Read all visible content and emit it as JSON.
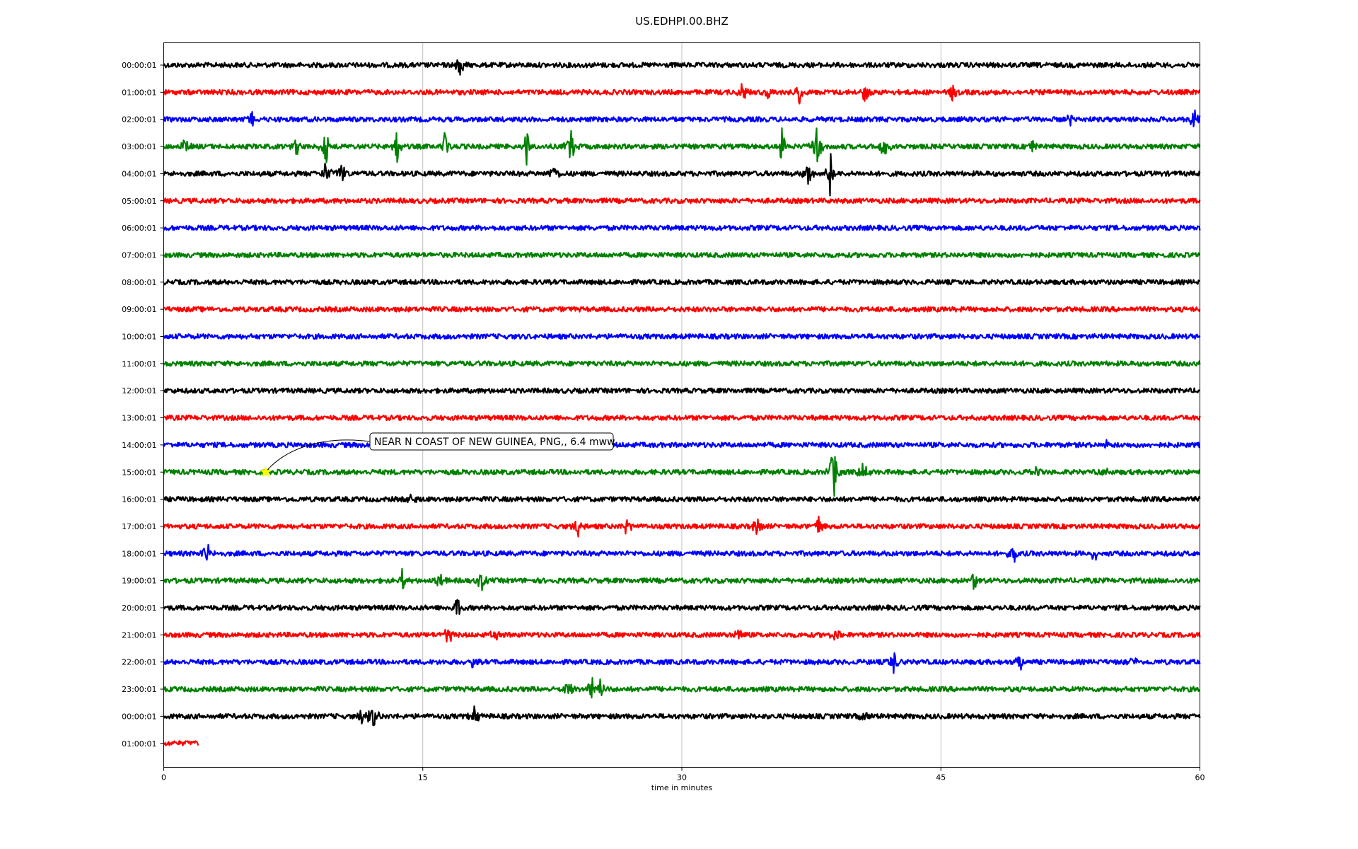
{
  "chart_data": {
    "type": "line",
    "title": "US.EDHPI.00.BHZ",
    "xlabel": "time in minutes",
    "ylabel": "",
    "xlim": [
      0,
      60
    ],
    "x_ticks": [
      0,
      15,
      30,
      45,
      60
    ],
    "x_tick_labels": [
      "0",
      "15",
      "30",
      "45",
      "60"
    ],
    "grid": "vertical",
    "colors": [
      "#000000",
      "#ff0000",
      "#0000ff",
      "#008000"
    ],
    "rows": [
      {
        "label": "00:00:01",
        "color": "#000000",
        "end_minute": 60,
        "events": [
          {
            "t": 17.1,
            "amp": 0.6
          }
        ]
      },
      {
        "label": "01:00:01",
        "color": "#ff0000",
        "end_minute": 60,
        "events": [
          {
            "t": 33.5,
            "amp": 0.6
          },
          {
            "t": 35.0,
            "amp": 0.4
          },
          {
            "t": 36.8,
            "amp": 0.7
          },
          {
            "t": 40.6,
            "amp": 0.5
          },
          {
            "t": 45.7,
            "amp": 0.4
          }
        ]
      },
      {
        "label": "02:00:01",
        "color": "#0000ff",
        "end_minute": 60,
        "events": [
          {
            "t": 5.1,
            "amp": 0.4
          },
          {
            "t": 52.5,
            "amp": 0.3
          },
          {
            "t": 59.7,
            "amp": 0.6
          }
        ]
      },
      {
        "label": "03:00:01",
        "color": "#008000",
        "end_minute": 60,
        "events": [
          {
            "t": 1.2,
            "amp": 0.4
          },
          {
            "t": 7.7,
            "amp": 0.6
          },
          {
            "t": 9.4,
            "amp": 0.9
          },
          {
            "t": 13.5,
            "amp": 0.9
          },
          {
            "t": 16.3,
            "amp": 0.9
          },
          {
            "t": 21.0,
            "amp": 0.9
          },
          {
            "t": 23.6,
            "amp": 1.0
          },
          {
            "t": 35.8,
            "amp": 0.9
          },
          {
            "t": 37.8,
            "amp": 1.2
          },
          {
            "t": 41.7,
            "amp": 0.7
          },
          {
            "t": 50.3,
            "amp": 0.4
          }
        ]
      },
      {
        "label": "04:00:01",
        "color": "#000000",
        "end_minute": 60,
        "events": [
          {
            "t": 9.4,
            "amp": 0.7
          },
          {
            "t": 10.3,
            "amp": 0.6
          },
          {
            "t": 22.6,
            "amp": 0.5
          },
          {
            "t": 37.3,
            "amp": 0.6
          },
          {
            "t": 38.6,
            "amp": 1.3
          }
        ]
      },
      {
        "label": "05:00:01",
        "color": "#ff0000",
        "end_minute": 60,
        "events": []
      },
      {
        "label": "06:00:01",
        "color": "#0000ff",
        "end_minute": 60,
        "events": []
      },
      {
        "label": "07:00:01",
        "color": "#008000",
        "end_minute": 60,
        "events": []
      },
      {
        "label": "08:00:01",
        "color": "#000000",
        "end_minute": 60,
        "events": []
      },
      {
        "label": "09:00:01",
        "color": "#ff0000",
        "end_minute": 60,
        "events": []
      },
      {
        "label": "10:00:01",
        "color": "#0000ff",
        "end_minute": 60,
        "events": []
      },
      {
        "label": "11:00:01",
        "color": "#008000",
        "end_minute": 60,
        "events": []
      },
      {
        "label": "12:00:01",
        "color": "#000000",
        "end_minute": 60,
        "events": []
      },
      {
        "label": "13:00:01",
        "color": "#ff0000",
        "end_minute": 60,
        "events": []
      },
      {
        "label": "14:00:01",
        "color": "#0000ff",
        "end_minute": 60,
        "events": [
          {
            "t": 54.6,
            "amp": 0.3
          }
        ]
      },
      {
        "label": "15:00:01",
        "color": "#008000",
        "end_minute": 60,
        "events": [
          {
            "t": 38.8,
            "amp": 1.4
          },
          {
            "t": 40.5,
            "amp": 0.6
          },
          {
            "t": 50.5,
            "amp": 0.3
          },
          {
            "t": 54.5,
            "amp": 0.4
          }
        ]
      },
      {
        "label": "16:00:01",
        "color": "#000000",
        "end_minute": 60,
        "events": [
          {
            "t": 14.3,
            "amp": 0.4
          }
        ]
      },
      {
        "label": "17:00:01",
        "color": "#ff0000",
        "end_minute": 60,
        "events": [
          {
            "t": 24.0,
            "amp": 0.5
          },
          {
            "t": 26.8,
            "amp": 0.5
          },
          {
            "t": 34.4,
            "amp": 0.6
          },
          {
            "t": 37.9,
            "amp": 0.6
          }
        ]
      },
      {
        "label": "18:00:01",
        "color": "#0000ff",
        "end_minute": 60,
        "events": [
          {
            "t": 2.5,
            "amp": 0.5
          },
          {
            "t": 49.2,
            "amp": 0.5
          },
          {
            "t": 53.9,
            "amp": 0.4
          }
        ]
      },
      {
        "label": "19:00:01",
        "color": "#008000",
        "end_minute": 60,
        "events": [
          {
            "t": 13.8,
            "amp": 0.5
          },
          {
            "t": 16.0,
            "amp": 0.4
          },
          {
            "t": 18.4,
            "amp": 0.5
          },
          {
            "t": 46.9,
            "amp": 0.6
          }
        ]
      },
      {
        "label": "20:00:01",
        "color": "#000000",
        "end_minute": 60,
        "events": [
          {
            "t": 17.0,
            "amp": 0.5
          }
        ]
      },
      {
        "label": "21:00:01",
        "color": "#ff0000",
        "end_minute": 60,
        "events": [
          {
            "t": 16.5,
            "amp": 0.5
          },
          {
            "t": 19.2,
            "amp": 0.3
          },
          {
            "t": 33.3,
            "amp": 0.4
          },
          {
            "t": 38.9,
            "amp": 0.3
          }
        ]
      },
      {
        "label": "22:00:01",
        "color": "#0000ff",
        "end_minute": 60,
        "events": [
          {
            "t": 17.9,
            "amp": 0.4
          },
          {
            "t": 42.3,
            "amp": 0.6
          },
          {
            "t": 49.6,
            "amp": 0.5
          },
          {
            "t": 56.2,
            "amp": 0.3
          }
        ]
      },
      {
        "label": "23:00:01",
        "color": "#008000",
        "end_minute": 60,
        "events": [
          {
            "t": 23.4,
            "amp": 0.5
          },
          {
            "t": 24.8,
            "amp": 0.6
          },
          {
            "t": 25.3,
            "amp": 0.5
          }
        ]
      },
      {
        "label": "00:00:01",
        "color": "#000000",
        "end_minute": 60,
        "events": [
          {
            "t": 11.5,
            "amp": 0.5
          },
          {
            "t": 12.1,
            "amp": 0.8
          },
          {
            "t": 18.0,
            "amp": 0.6
          },
          {
            "t": 40.6,
            "amp": 0.4
          }
        ]
      },
      {
        "label": "01:00:01",
        "color": "#ff0000",
        "end_minute": 2,
        "events": []
      }
    ],
    "annotation": {
      "text": "NEAR N COAST OF NEW GUINEA, PNG,, 6.4 mww",
      "row_index": 15,
      "minute": 5.9,
      "marker": "star",
      "marker_color": "#ffff00"
    }
  }
}
